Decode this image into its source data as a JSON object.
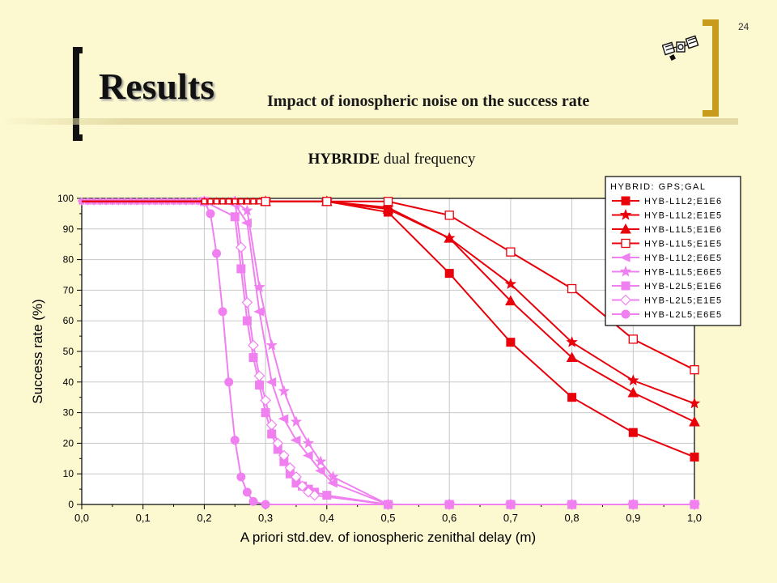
{
  "slide_number": "24",
  "title": "Results",
  "subtitle": "Impact of ionospheric noise on the success rate",
  "chart_heading_bold": "HYBRIDE",
  "chart_heading_rest": " dual frequency",
  "icon": "satellite-icon",
  "colors": {
    "red": "#E8000B",
    "pink": "#F080F0",
    "background": "#FCF8D0",
    "plot_bg": "#FFFFFF",
    "grid": "#C8C8C8"
  },
  "chart_data": {
    "type": "line",
    "xlabel": "A priori std.dev. of ionospheric zenithal delay (m)",
    "ylabel": "Success rate (%)",
    "xlim": [
      0,
      1.0
    ],
    "ylim": [
      0,
      100
    ],
    "x_ticks": [
      "0,0",
      "0,1",
      "0,2",
      "0,3",
      "0,4",
      "0,5",
      "0,6",
      "0,7",
      "0,8",
      "0,9",
      "1,0"
    ],
    "y_ticks": [
      "0",
      "10",
      "20",
      "30",
      "40",
      "50",
      "60",
      "70",
      "80",
      "90",
      "100"
    ],
    "grid": true,
    "legend_title": "HYBRID: GPS;GAL",
    "legend_position": "top-right",
    "series": [
      {
        "name": "HYB-L1L2;E1E6",
        "color": "#E8000B",
        "marker": "square",
        "x": [
          0.0,
          0.3,
          0.4,
          0.5,
          0.6,
          0.7,
          0.8,
          0.9,
          1.0
        ],
        "y": [
          99,
          99,
          99,
          95.5,
          75.5,
          53,
          35,
          23.5,
          15.5
        ]
      },
      {
        "name": "HYB-L1L2;E1E5",
        "color": "#E8000B",
        "marker": "star",
        "x": [
          0.0,
          0.3,
          0.4,
          0.5,
          0.6,
          0.7,
          0.8,
          0.9,
          1.0
        ],
        "y": [
          99,
          99,
          99,
          97,
          87,
          72,
          53,
          40.5,
          33
        ]
      },
      {
        "name": "HYB-L1L5;E1E6",
        "color": "#E8000B",
        "marker": "triangle",
        "x": [
          0.0,
          0.3,
          0.4,
          0.5,
          0.6,
          0.7,
          0.8,
          0.9,
          1.0
        ],
        "y": [
          99,
          99,
          99,
          96.5,
          87,
          66.5,
          48,
          36.5,
          27
        ]
      },
      {
        "name": "HYB-L1L5;E1E5",
        "color": "#E8000B",
        "marker": "square-open",
        "x": [
          0.0,
          0.3,
          0.4,
          0.5,
          0.6,
          0.7,
          0.8,
          0.9,
          1.0
        ],
        "y": [
          99,
          99,
          99,
          99,
          94.5,
          82.5,
          70.5,
          54,
          44
        ]
      },
      {
        "name": "HYB-L1L2;E6E5",
        "color": "#F080F0",
        "marker": "triangle-left",
        "x": [
          0.0,
          0.2,
          0.25,
          0.27,
          0.29,
          0.31,
          0.33,
          0.35,
          0.37,
          0.39,
          0.41,
          0.5,
          0.6,
          0.7,
          0.8,
          0.9,
          1.0
        ],
        "y": [
          99,
          99,
          98,
          92,
          63,
          40,
          28,
          21,
          16,
          11,
          7,
          0,
          0,
          0,
          0,
          0,
          0
        ]
      },
      {
        "name": "HYB-L1L5;E6E5",
        "color": "#F080F0",
        "marker": "star",
        "x": [
          0.0,
          0.2,
          0.25,
          0.27,
          0.29,
          0.31,
          0.33,
          0.35,
          0.37,
          0.39,
          0.41,
          0.5,
          0.6,
          0.7,
          0.8,
          0.9,
          1.0
        ],
        "y": [
          99,
          99,
          99,
          96,
          71,
          52,
          37,
          27,
          20,
          14,
          9,
          0,
          0,
          0,
          0,
          0,
          0
        ]
      },
      {
        "name": "HYB-L2L5;E1E6",
        "color": "#F080F0",
        "marker": "square",
        "x": [
          0.0,
          0.2,
          0.25,
          0.26,
          0.27,
          0.28,
          0.29,
          0.3,
          0.31,
          0.32,
          0.33,
          0.34,
          0.35,
          0.36,
          0.37,
          0.38,
          0.4,
          0.5,
          0.6,
          0.7,
          0.8,
          0.9,
          1.0
        ],
        "y": [
          99,
          99,
          94,
          77,
          60,
          48,
          39,
          30,
          23,
          18,
          14,
          10,
          7,
          6,
          5,
          4,
          3,
          0,
          0,
          0,
          0,
          0,
          0
        ]
      },
      {
        "name": "HYB-L2L5;E1E5",
        "color": "#F080F0",
        "marker": "diamond-open",
        "x": [
          0.0,
          0.2,
          0.25,
          0.26,
          0.27,
          0.28,
          0.29,
          0.3,
          0.31,
          0.32,
          0.33,
          0.34,
          0.35,
          0.36,
          0.37,
          0.38,
          0.5,
          0.6,
          0.7,
          0.8,
          0.9,
          1.0
        ],
        "y": [
          99,
          99,
          99,
          84,
          66,
          52,
          42,
          34,
          26,
          20,
          16,
          12,
          9,
          6,
          4,
          3,
          0,
          0,
          0,
          0,
          0,
          0
        ]
      },
      {
        "name": "HYB-L2L5;E6E5",
        "color": "#F080F0",
        "marker": "circle",
        "x": [
          0.0,
          0.2,
          0.21,
          0.22,
          0.23,
          0.24,
          0.25,
          0.26,
          0.27,
          0.28,
          0.3,
          0.5,
          0.6,
          0.7,
          0.8,
          0.9,
          1.0
        ],
        "y": [
          99,
          99,
          95,
          82,
          63,
          40,
          21,
          9,
          4,
          1,
          0,
          0,
          0,
          0,
          0,
          0,
          0
        ]
      }
    ]
  }
}
